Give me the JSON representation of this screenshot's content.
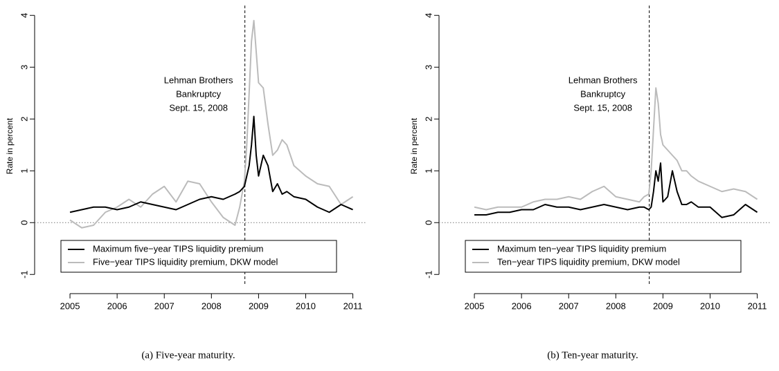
{
  "chart_data": [
    {
      "type": "line",
      "y_label": "Rate in percent",
      "caption": "(a) Five-year maturity.",
      "annotation": [
        "Lehman Brothers",
        "Bankruptcy",
        "Sept. 15, 2008"
      ],
      "vline": 2008.71,
      "hline": 0,
      "xlim": [
        2004.25,
        2011.3
      ],
      "ylim": [
        -1.37,
        4.19
      ],
      "xticks": [
        2005,
        2006,
        2007,
        2008,
        2009,
        2010,
        2011
      ],
      "yticks": [
        -1,
        0,
        1,
        2,
        3,
        4
      ],
      "legend": "bottom left",
      "x": [
        2005.0,
        2005.25,
        2005.5,
        2005.75,
        2006.0,
        2006.25,
        2006.5,
        2006.75,
        2007.0,
        2007.25,
        2007.5,
        2007.75,
        2008.0,
        2008.25,
        2008.5,
        2008.6,
        2008.7,
        2008.75,
        2008.8,
        2008.85,
        2008.9,
        2008.95,
        2009.0,
        2009.1,
        2009.2,
        2009.3,
        2009.4,
        2009.5,
        2009.6,
        2009.75,
        2010.0,
        2010.25,
        2010.5,
        2010.75,
        2011.0
      ],
      "series": [
        {
          "name": "Maximum five−year TIPS liquidity premium",
          "color": "#000000",
          "values": [
            0.2,
            0.25,
            0.3,
            0.3,
            0.25,
            0.3,
            0.4,
            0.35,
            0.3,
            0.25,
            0.35,
            0.45,
            0.5,
            0.45,
            0.55,
            0.6,
            0.7,
            0.9,
            1.1,
            1.5,
            2.05,
            1.3,
            0.9,
            1.3,
            1.1,
            0.6,
            0.75,
            0.55,
            0.6,
            0.5,
            0.45,
            0.3,
            0.2,
            0.35,
            0.25
          ]
        },
        {
          "name": "Five−year TIPS liquidity premium, DKW model",
          "color": "#bbbbbb",
          "values": [
            0.05,
            -0.1,
            -0.05,
            0.2,
            0.3,
            0.45,
            0.3,
            0.55,
            0.7,
            0.4,
            0.8,
            0.75,
            0.4,
            0.1,
            -0.05,
            0.3,
            0.8,
            1.5,
            2.5,
            3.5,
            3.9,
            3.3,
            2.7,
            2.6,
            1.9,
            1.3,
            1.4,
            1.6,
            1.5,
            1.1,
            0.9,
            0.75,
            0.7,
            0.35,
            0.5
          ]
        }
      ]
    },
    {
      "type": "line",
      "y_label": "Rate in percent",
      "caption": "(b) Ten-year maturity.",
      "annotation": [
        "Lehman Brothers",
        "Bankruptcy",
        "Sept. 15, 2008"
      ],
      "vline": 2008.71,
      "hline": 0,
      "xlim": [
        2004.25,
        2011.3
      ],
      "ylim": [
        -1.37,
        4.19
      ],
      "xticks": [
        2005,
        2006,
        2007,
        2008,
        2009,
        2010,
        2011
      ],
      "yticks": [
        -1,
        0,
        1,
        2,
        3,
        4
      ],
      "legend": "bottom left",
      "x": [
        2005.0,
        2005.25,
        2005.5,
        2005.75,
        2006.0,
        2006.25,
        2006.5,
        2006.75,
        2007.0,
        2007.25,
        2007.5,
        2007.75,
        2008.0,
        2008.25,
        2008.5,
        2008.6,
        2008.7,
        2008.75,
        2008.8,
        2008.85,
        2008.9,
        2008.95,
        2009.0,
        2009.1,
        2009.2,
        2009.3,
        2009.4,
        2009.5,
        2009.6,
        2009.75,
        2010.0,
        2010.25,
        2010.5,
        2010.75,
        2011.0
      ],
      "series": [
        {
          "name": "Maximum ten−year TIPS liquidity premium",
          "color": "#000000",
          "values": [
            0.15,
            0.15,
            0.2,
            0.2,
            0.25,
            0.25,
            0.35,
            0.3,
            0.3,
            0.25,
            0.3,
            0.35,
            0.3,
            0.25,
            0.3,
            0.3,
            0.25,
            0.3,
            0.6,
            1.0,
            0.8,
            1.15,
            0.4,
            0.5,
            1.0,
            0.6,
            0.35,
            0.35,
            0.4,
            0.3,
            0.3,
            0.1,
            0.15,
            0.35,
            0.2
          ]
        },
        {
          "name": "Ten−year TIPS liquidity premium, DKW model",
          "color": "#bbbbbb",
          "values": [
            0.3,
            0.25,
            0.3,
            0.3,
            0.3,
            0.4,
            0.45,
            0.45,
            0.5,
            0.45,
            0.6,
            0.7,
            0.5,
            0.45,
            0.4,
            0.5,
            0.55,
            1.0,
            1.8,
            2.6,
            2.3,
            1.7,
            1.5,
            1.4,
            1.3,
            1.2,
            1.0,
            1.0,
            0.9,
            0.8,
            0.7,
            0.6,
            0.65,
            0.6,
            0.45
          ]
        }
      ]
    }
  ]
}
